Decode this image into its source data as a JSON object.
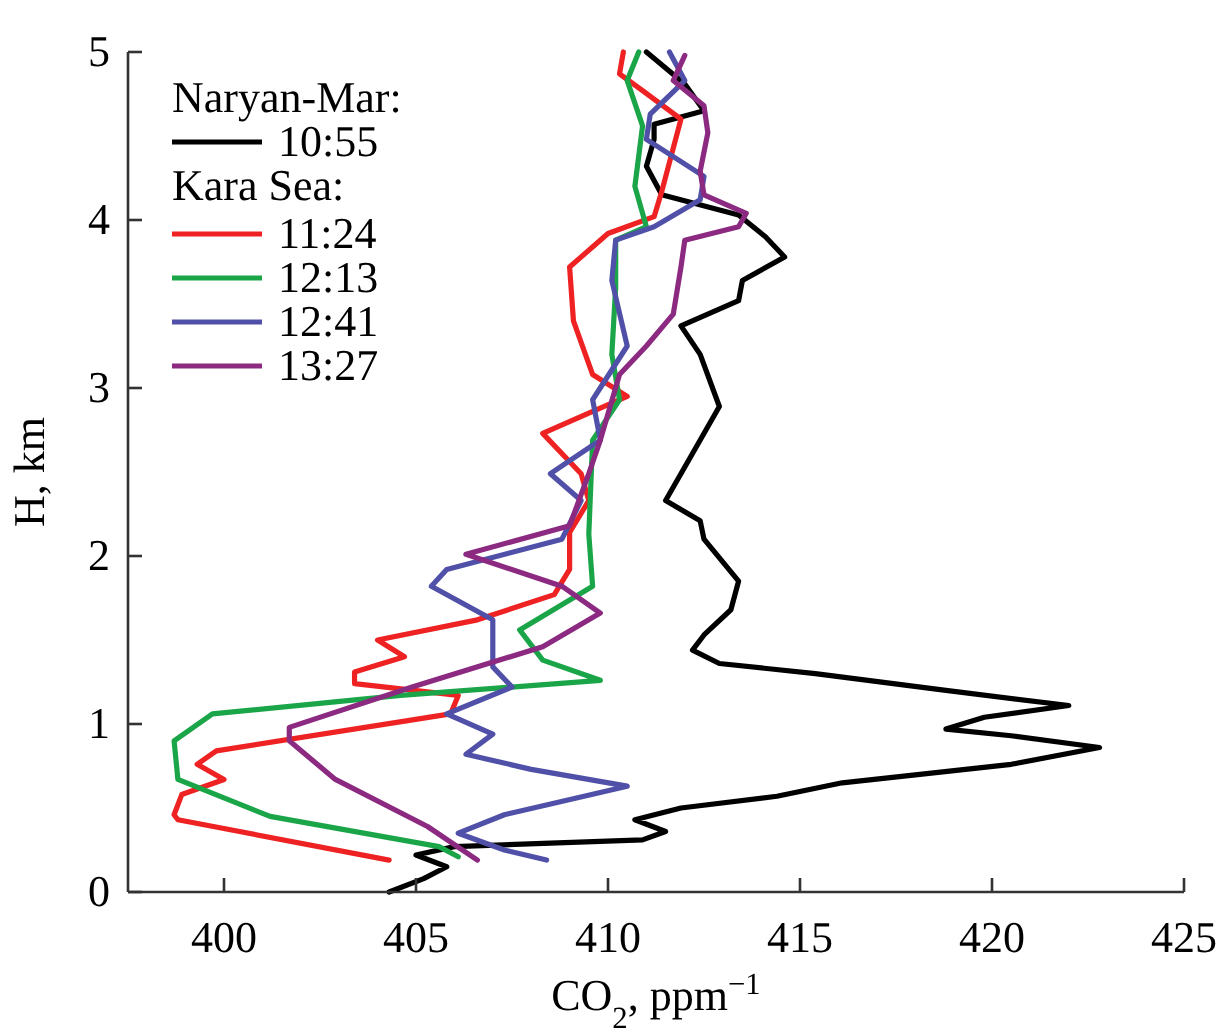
{
  "chart_data": {
    "type": "line",
    "xlabel": "CO$_{2}$, ppm$^{−1}$",
    "ylabel": "H, km",
    "xlim": [
      397.5,
      425
    ],
    "xticks": [
      400,
      405,
      410,
      415,
      420,
      425
    ],
    "ylim": [
      0,
      5
    ],
    "yticks": [
      0,
      1,
      2,
      3,
      4,
      5
    ],
    "grid": false,
    "legend": "top left",
    "line_style": "solid",
    "annotations": [
      "Naryan-Mar:",
      "Kara Sea:"
    ],
    "series": [
      {
        "name": "10:55",
        "color": "#000000",
        "x": [
          404.3,
          405.2,
          405.8,
          405.0,
          406.0,
          410.9,
          411.5,
          410.7,
          411.9,
          414.4,
          416.1,
          420.5,
          422.8,
          420.5,
          418.8,
          419.8,
          422.0,
          418.8,
          415.4,
          412.9,
          412.2,
          412.5,
          413.2,
          413.4,
          412.5,
          412.4,
          411.5,
          412.0,
          412.9,
          412.4,
          411.9,
          413.4,
          413.5,
          414.6,
          414.1,
          413.4,
          411.4,
          411.0,
          411.2,
          411.2,
          412.5,
          412.0,
          411.0
        ],
        "values": [
          0.0,
          0.08,
          0.15,
          0.22,
          0.27,
          0.31,
          0.36,
          0.43,
          0.5,
          0.57,
          0.65,
          0.76,
          0.86,
          0.93,
          0.97,
          1.04,
          1.11,
          1.2,
          1.3,
          1.36,
          1.44,
          1.53,
          1.68,
          1.85,
          2.1,
          2.21,
          2.33,
          2.53,
          2.89,
          3.2,
          3.37,
          3.52,
          3.64,
          3.78,
          3.9,
          4.03,
          4.15,
          4.32,
          4.48,
          4.57,
          4.65,
          4.81,
          5.0
        ]
      },
      {
        "name": "11:24",
        "color": "#ee2222",
        "x": [
          404.3,
          398.8,
          398.7,
          398.9,
          400.0,
          399.3,
          399.8,
          405.9,
          406.1,
          403.4,
          403.4,
          404.7,
          404.0,
          406.6,
          408.6,
          409.0,
          409.0,
          409.5,
          409.3,
          408.3,
          409.5,
          410.5,
          409.6,
          409.1,
          409.0,
          410.0,
          411.2,
          411.4,
          411.9,
          410.9,
          410.3,
          410.4
        ],
        "values": [
          0.19,
          0.43,
          0.46,
          0.58,
          0.67,
          0.76,
          0.84,
          1.06,
          1.17,
          1.24,
          1.31,
          1.4,
          1.5,
          1.62,
          1.77,
          1.92,
          2.14,
          2.33,
          2.49,
          2.73,
          2.85,
          2.95,
          3.08,
          3.4,
          3.72,
          3.92,
          4.02,
          4.17,
          4.6,
          4.77,
          4.87,
          5.0
        ]
      },
      {
        "name": "12:13",
        "color": "#1aa548",
        "x": [
          406.1,
          405.6,
          401.2,
          398.8,
          398.7,
          399.7,
          404.6,
          409.8,
          408.3,
          407.7,
          409.6,
          409.5,
          409.6,
          410.3,
          410.1,
          410.2,
          410.2,
          411.0,
          410.7,
          410.9,
          410.5,
          410.8
        ],
        "values": [
          0.21,
          0.27,
          0.45,
          0.67,
          0.9,
          1.06,
          1.17,
          1.26,
          1.38,
          1.56,
          1.82,
          2.13,
          2.69,
          2.93,
          3.2,
          3.6,
          3.88,
          3.96,
          4.2,
          4.56,
          4.83,
          5.0
        ]
      },
      {
        "name": "12:41",
        "color": "#5050a8",
        "x": [
          408.4,
          407.3,
          406.1,
          407.3,
          410.5,
          408.0,
          406.3,
          407.0,
          405.8,
          407.5,
          407.0,
          407.0,
          405.4,
          405.8,
          408.8,
          409.3,
          408.5,
          409.8,
          409.6,
          410.5,
          410.1,
          410.2,
          411.2,
          412.4,
          412.5,
          411.0,
          411.1,
          412.0,
          411.6
        ],
        "values": [
          0.19,
          0.25,
          0.35,
          0.46,
          0.63,
          0.73,
          0.82,
          0.94,
          1.06,
          1.22,
          1.34,
          1.62,
          1.82,
          1.92,
          2.1,
          2.33,
          2.49,
          2.69,
          2.93,
          3.25,
          3.64,
          3.88,
          3.96,
          4.12,
          4.26,
          4.48,
          4.63,
          4.83,
          5.0
        ]
      },
      {
        "name": "13:27",
        "color": "#8b2a80",
        "x": [
          406.6,
          405.3,
          402.9,
          401.7,
          401.7,
          404.9,
          408.3,
          409.8,
          408.8,
          406.3,
          409.0,
          409.5,
          409.8,
          410.3,
          411.0,
          411.7,
          411.9,
          412.0,
          413.4,
          413.6,
          412.5,
          412.4,
          412.6,
          412.5,
          411.7,
          412.0
        ],
        "values": [
          0.19,
          0.39,
          0.67,
          0.9,
          0.98,
          1.22,
          1.46,
          1.66,
          1.82,
          2.01,
          2.18,
          2.49,
          2.69,
          3.08,
          3.25,
          3.44,
          3.72,
          3.88,
          3.96,
          4.04,
          4.15,
          4.29,
          4.52,
          4.68,
          4.83,
          4.98
        ]
      }
    ]
  }
}
